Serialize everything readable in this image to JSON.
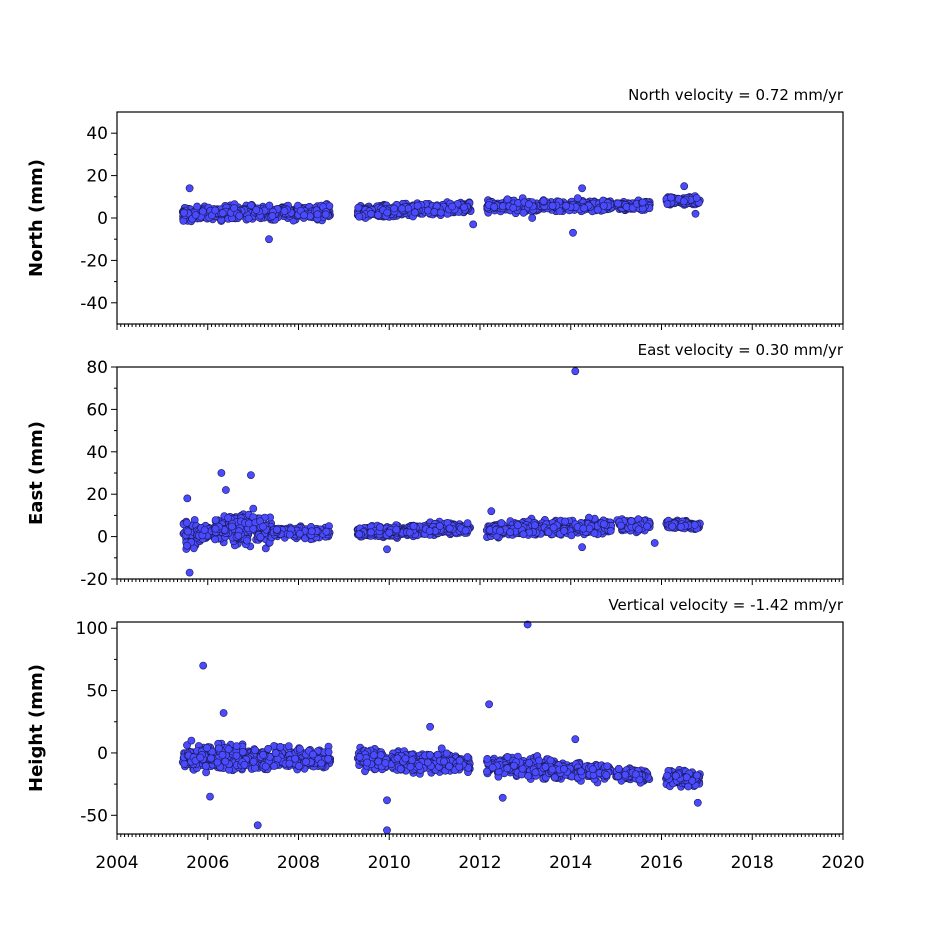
{
  "chart_data": [
    {
      "type": "scatter",
      "name": "north",
      "title": "North velocity = 0.72 mm/yr",
      "ylabel": "North (mm)",
      "xlim": [
        2004,
        2020
      ],
      "ylim": [
        -50,
        50
      ],
      "yticks": [
        -40,
        -20,
        0,
        20,
        40
      ],
      "segments": [
        {
          "x0": 2005.45,
          "x1": 2008.7,
          "mean0": 2,
          "mean1": 3,
          "spread": 5
        },
        {
          "x0": 2009.3,
          "x1": 2011.8,
          "mean0": 2.5,
          "mean1": 5,
          "spread": 4
        },
        {
          "x0": 2012.15,
          "x1": 2014.9,
          "mean0": 5.5,
          "mean1": 6,
          "spread": 4
        },
        {
          "x0": 2015.0,
          "x1": 2015.75,
          "mean0": 6,
          "mean1": 6,
          "spread": 3
        },
        {
          "x0": 2016.1,
          "x1": 2016.85,
          "mean0": 8,
          "mean1": 8,
          "spread": 3
        }
      ],
      "outliers": [
        [
          2005.6,
          14
        ],
        [
          2007.35,
          -10
        ],
        [
          2011.85,
          -3
        ],
        [
          2013.15,
          0
        ],
        [
          2014.05,
          -7
        ],
        [
          2014.25,
          14
        ],
        [
          2016.5,
          15
        ],
        [
          2016.75,
          2
        ]
      ]
    },
    {
      "type": "scatter",
      "name": "east",
      "title": "East velocity = 0.30 mm/yr",
      "ylabel": "East (mm)",
      "xlim": [
        2004,
        2020
      ],
      "ylim": [
        -20,
        80
      ],
      "yticks": [
        -20,
        0,
        20,
        40,
        60,
        80
      ],
      "segments": [
        {
          "x0": 2005.45,
          "x1": 2005.75,
          "mean0": 1,
          "mean1": 1,
          "spread": 12
        },
        {
          "x0": 2005.75,
          "x1": 2006.15,
          "mean0": 1,
          "mean1": 2,
          "spread": 4
        },
        {
          "x0": 2006.15,
          "x1": 2007.4,
          "mean0": 4,
          "mean1": 3,
          "spread": 11
        },
        {
          "x0": 2007.4,
          "x1": 2008.7,
          "mean0": 2,
          "mean1": 2,
          "spread": 4
        },
        {
          "x0": 2009.3,
          "x1": 2011.8,
          "mean0": 2,
          "mean1": 4,
          "spread": 4
        },
        {
          "x0": 2012.15,
          "x1": 2014.9,
          "mean0": 3,
          "mean1": 5,
          "spread": 5
        },
        {
          "x0": 2015.0,
          "x1": 2015.75,
          "mean0": 6,
          "mean1": 5,
          "spread": 4
        },
        {
          "x0": 2016.1,
          "x1": 2016.85,
          "mean0": 6,
          "mean1": 5,
          "spread": 3
        }
      ],
      "outliers": [
        [
          2005.55,
          18
        ],
        [
          2005.6,
          -17
        ],
        [
          2006.3,
          30
        ],
        [
          2006.95,
          29
        ],
        [
          2006.4,
          22
        ],
        [
          2009.95,
          -6
        ],
        [
          2012.25,
          12
        ],
        [
          2014.1,
          78
        ],
        [
          2014.25,
          -5
        ],
        [
          2015.85,
          -3
        ]
      ]
    },
    {
      "type": "scatter",
      "name": "height",
      "title": "Vertical velocity = -1.42 mm/yr",
      "ylabel": "Height (mm)",
      "xlim": [
        2004,
        2020
      ],
      "ylim": [
        -65,
        105
      ],
      "yticks": [
        -50,
        0,
        50,
        100
      ],
      "segments": [
        {
          "x0": 2005.45,
          "x1": 2008.7,
          "mean0": -3,
          "mean1": -5,
          "spread": 14
        },
        {
          "x0": 2009.3,
          "x1": 2011.8,
          "mean0": -5,
          "mean1": -9,
          "spread": 12
        },
        {
          "x0": 2012.15,
          "x1": 2014.9,
          "mean0": -10,
          "mean1": -16,
          "spread": 11
        },
        {
          "x0": 2015.0,
          "x1": 2015.75,
          "mean0": -17,
          "mean1": -18,
          "spread": 8
        },
        {
          "x0": 2016.1,
          "x1": 2016.85,
          "mean0": -19,
          "mean1": -22,
          "spread": 10
        }
      ],
      "outliers": [
        [
          2005.9,
          70
        ],
        [
          2006.35,
          32
        ],
        [
          2006.05,
          -35
        ],
        [
          2007.1,
          -58
        ],
        [
          2009.95,
          -62
        ],
        [
          2009.95,
          -38
        ],
        [
          2010.9,
          21
        ],
        [
          2012.2,
          39
        ],
        [
          2013.05,
          103
        ],
        [
          2012.5,
          -36
        ],
        [
          2014.1,
          11
        ],
        [
          2016.8,
          -40
        ]
      ]
    }
  ],
  "x_tick_labels": [
    "2004",
    "2006",
    "2008",
    "2010",
    "2012",
    "2014",
    "2016",
    "2018",
    "2020"
  ],
  "point_color": "#4a4aff",
  "point_edge_color": "#1a1a55"
}
